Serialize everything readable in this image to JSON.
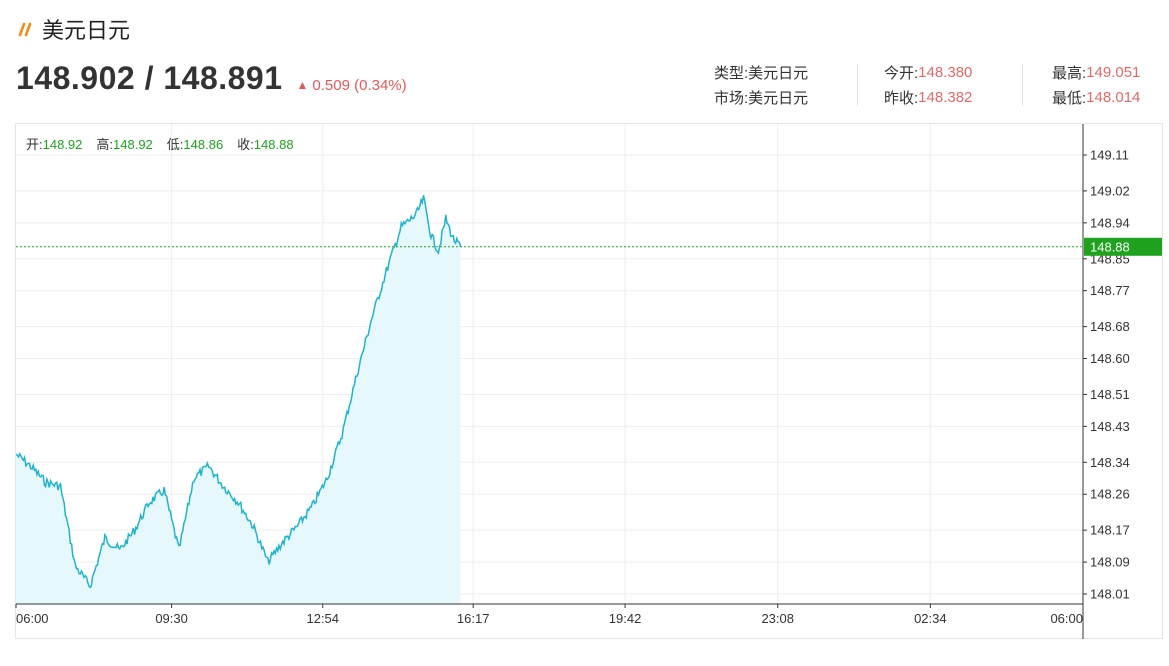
{
  "header": {
    "title": "美元日元",
    "bid_ask": "148.902 / 148.891",
    "change": "0.509 (0.34%)"
  },
  "info": {
    "type_label": "类型:",
    "type_value": "美元日元",
    "market_label": "市场:",
    "market_value": "美元日元",
    "open_label": "今开:",
    "open_value": "148.380",
    "prev_close_label": "昨收:",
    "prev_close_value": "148.382",
    "high_label": "最高:",
    "high_value": "149.051",
    "low_label": "最低:",
    "low_value": "148.014"
  },
  "ohlc": {
    "open_label": "开:",
    "open": "148.92",
    "high_label": "高:",
    "high": "148.92",
    "low_label": "低:",
    "low": "148.86",
    "close_label": "收:",
    "close": "148.88"
  },
  "colors": {
    "line": "#1fb3cc",
    "fill": "#e6f8fb",
    "current_price": "#1fa31f",
    "up": "#e05a5a"
  },
  "chart_data": {
    "type": "area",
    "ylim": [
      147.98,
      149.15
    ],
    "y_ticks": [
      "149.11",
      "149.02",
      "148.94",
      "148.85",
      "148.77",
      "148.68",
      "148.60",
      "148.51",
      "148.43",
      "148.34",
      "148.26",
      "148.17",
      "148.09",
      "148.01"
    ],
    "x_ticks": [
      "06:00",
      "09:30",
      "12:54",
      "16:17",
      "19:42",
      "23:08",
      "02:34",
      "06:00"
    ],
    "current_price": 148.88,
    "current_label": "148.88",
    "series": [
      {
        "x": [
          "06:00",
          "06:20",
          "06:40",
          "07:00",
          "07:20",
          "07:40",
          "08:00",
          "08:20",
          "08:40",
          "09:00",
          "09:20",
          "09:40",
          "10:00",
          "10:20",
          "10:40",
          "11:00",
          "11:20",
          "11:40",
          "12:00",
          "12:20",
          "12:40",
          "13:00",
          "13:20",
          "13:40",
          "14:00",
          "14:20",
          "14:40",
          "15:00",
          "15:10",
          "15:20",
          "15:30",
          "15:40",
          "15:50",
          "16:00"
        ],
        "values": [
          148.36,
          148.33,
          148.29,
          148.28,
          148.08,
          148.03,
          148.15,
          148.12,
          148.17,
          148.24,
          148.27,
          148.12,
          148.3,
          148.33,
          148.28,
          148.24,
          148.18,
          148.09,
          148.14,
          148.18,
          148.23,
          148.3,
          148.41,
          148.56,
          148.7,
          148.82,
          148.93,
          148.96,
          149.0,
          148.91,
          148.87,
          148.95,
          148.9,
          148.88
        ]
      }
    ]
  }
}
